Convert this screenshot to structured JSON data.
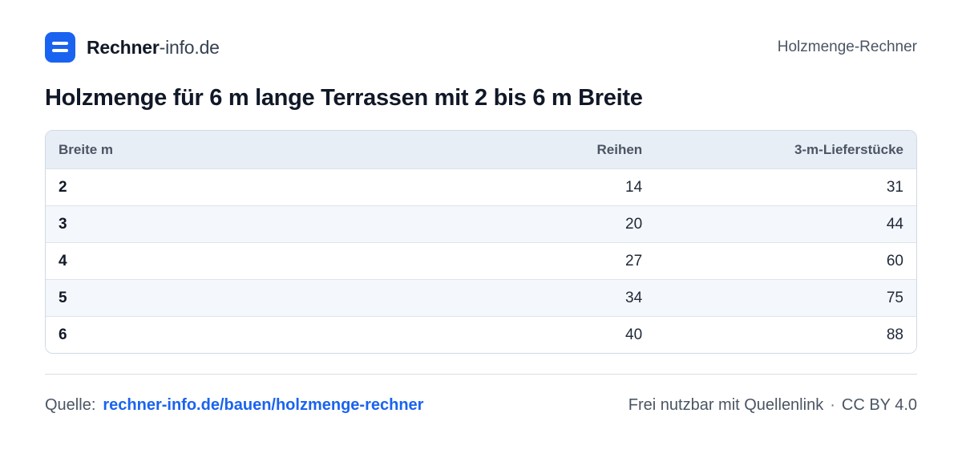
{
  "brand": {
    "name_bold": "Rechner",
    "name_light": "-info.de",
    "logo_icon": "equals-icon",
    "logo_color": "#1a63f0"
  },
  "header": {
    "right_label": "Holzmenge-Rechner"
  },
  "title": "Holzmenge für 6 m lange Terrassen mit 2 bis 6 m Breite",
  "table": {
    "columns": [
      "Breite m",
      "Reihen",
      "3-m-Lieferstücke"
    ],
    "rows": [
      [
        "2",
        "14",
        "31"
      ],
      [
        "3",
        "20",
        "44"
      ],
      [
        "4",
        "27",
        "60"
      ],
      [
        "5",
        "34",
        "75"
      ],
      [
        "6",
        "40",
        "88"
      ]
    ]
  },
  "footer": {
    "source_label": "Quelle:",
    "source_link": "rechner-info.de/bauen/holzmenge-rechner",
    "usage_note": "Frei nutzbar mit Quellenlink",
    "separator": "·",
    "license": "CC BY 4.0"
  }
}
